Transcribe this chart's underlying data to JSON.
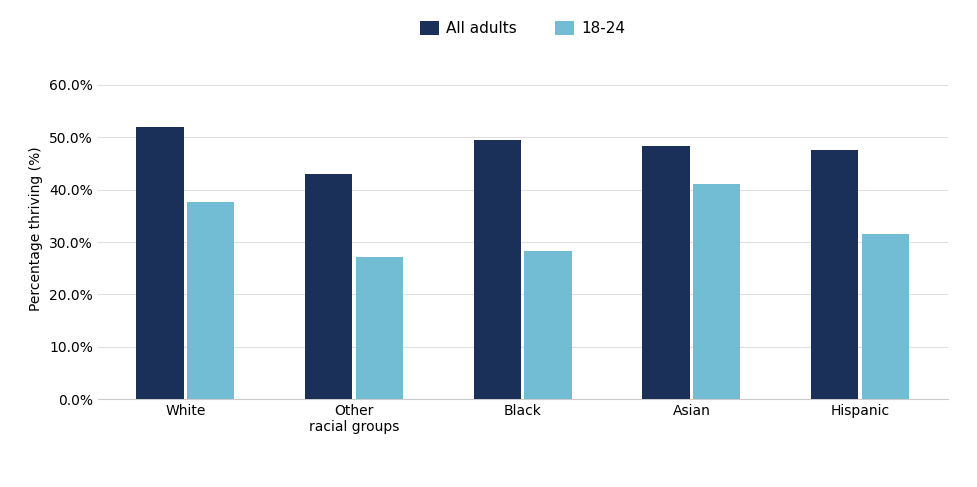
{
  "categories": [
    "White",
    "Other\nracial groups",
    "Black",
    "Asian",
    "Hispanic"
  ],
  "all_adults": [
    52.0,
    43.0,
    49.5,
    48.3,
    47.5
  ],
  "age_18_24": [
    37.7,
    27.1,
    28.3,
    41.0,
    31.5
  ],
  "all_adults_color": "#1a3058",
  "age_18_24_color": "#72bcd4",
  "ylabel": "Percentage thriving (%)",
  "ylim": [
    0,
    65
  ],
  "yticks": [
    0,
    10,
    20,
    30,
    40,
    50,
    60
  ],
  "ytick_labels": [
    "0.0%",
    "10.0%",
    "20.0%",
    "30.0%",
    "40.0%",
    "50.0%",
    "60.0%"
  ],
  "legend_labels": [
    "All adults",
    "18-24"
  ],
  "background_color": "#ffffff",
  "bar_width": 0.28,
  "axis_fontsize": 10,
  "tick_fontsize": 10,
  "legend_fontsize": 11
}
